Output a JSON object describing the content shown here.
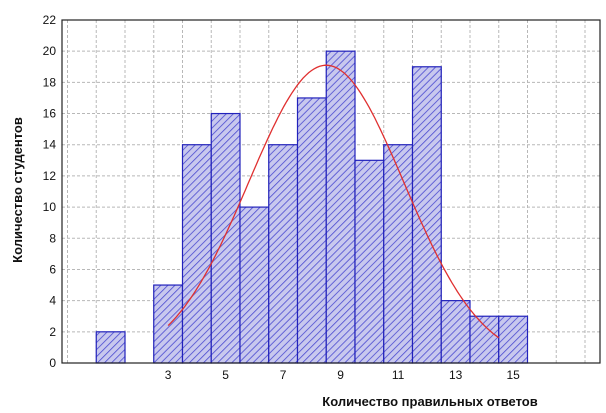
{
  "chart_data": {
    "type": "bar",
    "xlabel": "Количество правильных ответов",
    "ylabel": "Количество студентов",
    "x_tick_labels": [
      "3",
      "5",
      "7",
      "9",
      "11",
      "13",
      "15"
    ],
    "y_tick_labels": [
      "0",
      "2",
      "4",
      "6",
      "8",
      "10",
      "12",
      "14",
      "16",
      "18",
      "20",
      "22"
    ],
    "ylim": [
      0,
      22
    ],
    "grid": true,
    "bins": [
      0,
      1,
      2,
      3,
      4,
      5,
      6,
      7,
      8,
      9,
      10,
      11,
      12,
      13,
      14,
      15
    ],
    "values": [
      0,
      2,
      0,
      5,
      14,
      16,
      10,
      14,
      17,
      20,
      13,
      14,
      19,
      4,
      3,
      3
    ],
    "normal_curve": {
      "peak_x": 8.5,
      "peak_y": 19.1
    },
    "colors": {
      "bar_fill": "#c8c8ee",
      "bar_hatch": "#4a4ad0",
      "bar_edge": "#2222bb",
      "curve": "#e03030",
      "grid": "#b8b8b8"
    }
  }
}
